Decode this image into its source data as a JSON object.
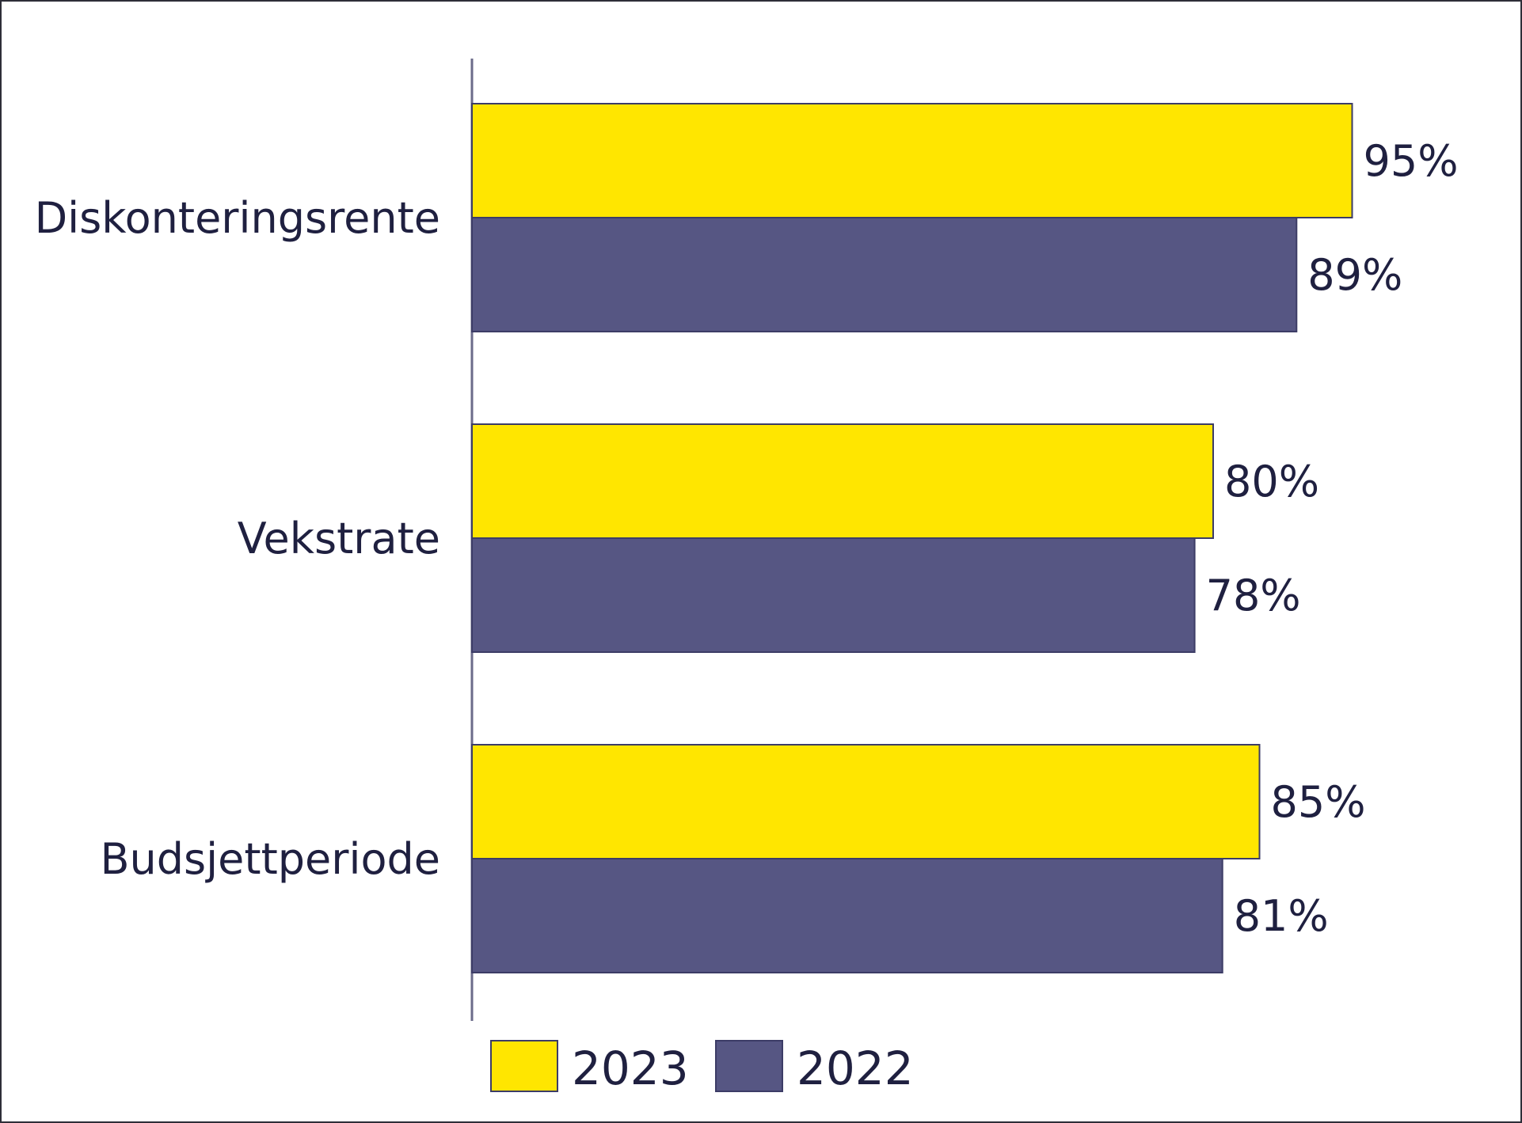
{
  "chart_data": {
    "type": "bar",
    "orientation": "horizontal",
    "categories": [
      "Diskonteringsrente",
      "Vekstrate",
      "Budsjettperiode"
    ],
    "series": [
      {
        "name": "2023",
        "values": [
          95,
          80,
          85
        ],
        "color": "#ffe600"
      },
      {
        "name": "2022",
        "values": [
          89,
          78,
          81
        ],
        "color": "#565683"
      }
    ],
    "value_labels": [
      [
        "95%",
        "80%",
        "85%"
      ],
      [
        "89%",
        "78%",
        "81%"
      ]
    ],
    "xlim": [
      0,
      100
    ],
    "grid": false,
    "legend_position": "bottom-left"
  }
}
